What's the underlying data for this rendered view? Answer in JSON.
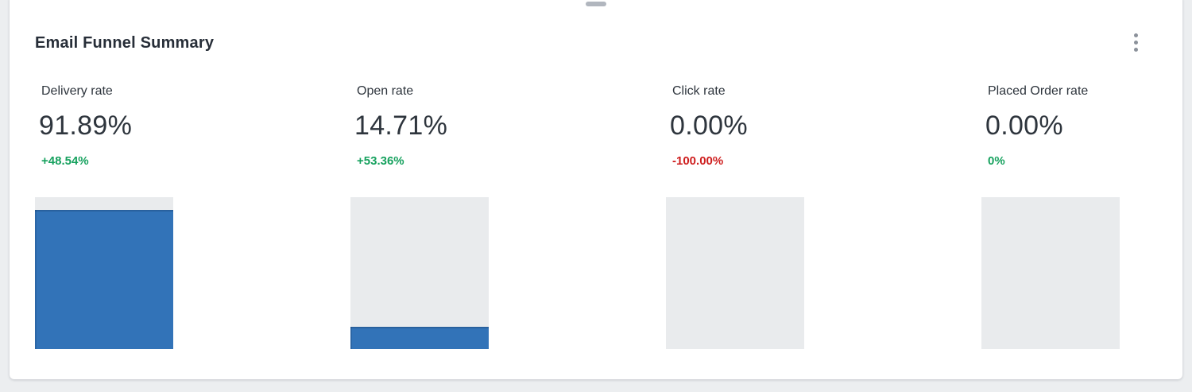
{
  "page": {
    "background_color": "#eceef0"
  },
  "card": {
    "title": "Email Funnel Summary",
    "menu_icon": "kebab-vertical-icon",
    "drag_handle_icon": "drag-handle-pill"
  },
  "colors": {
    "positive_delta": "#16a15e",
    "negative_delta": "#ce1e1e",
    "bar_fill": "#3273b8",
    "bar_track": "#e9ebed",
    "text_primary": "#2e353d"
  },
  "metrics": [
    {
      "label": "Delivery rate",
      "value": "91.89%",
      "delta": "+48.54%",
      "direction": "positive",
      "bar_percent": 91.89
    },
    {
      "label": "Open rate",
      "value": "14.71%",
      "delta": "+53.36%",
      "direction": "positive",
      "bar_percent": 14.71
    },
    {
      "label": "Click rate",
      "value": "0.00%",
      "delta": "-100.00%",
      "direction": "negative",
      "bar_percent": 0
    },
    {
      "label": "Placed Order rate",
      "value": "0.00%",
      "delta": "0%",
      "direction": "positive",
      "bar_percent": 0
    }
  ],
  "chart_data": {
    "type": "bar",
    "title": "Email Funnel Summary",
    "categories": [
      "Delivery rate",
      "Open rate",
      "Click rate",
      "Placed Order rate"
    ],
    "values": [
      91.89,
      14.71,
      0.0,
      0.0
    ],
    "deltas": [
      "+48.54%",
      "+53.36%",
      "-100.00%",
      "0%"
    ],
    "xlabel": "",
    "ylabel": "",
    "ylim": [
      0,
      100
    ],
    "grid": false,
    "legend": false
  }
}
